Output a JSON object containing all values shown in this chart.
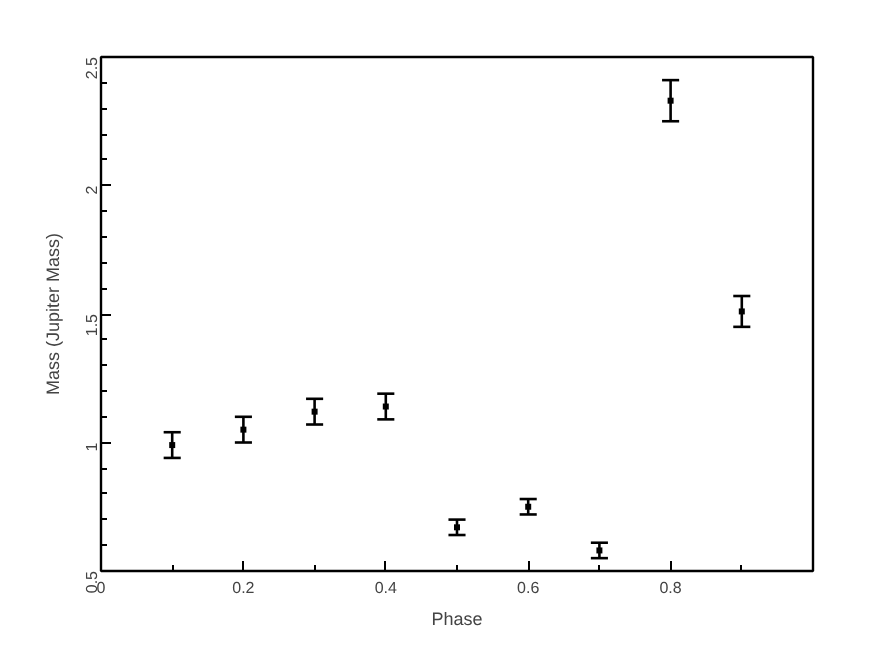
{
  "chart_data": {
    "type": "scatter",
    "xlabel": "Phase",
    "ylabel": "Mass (Jupiter Mass)",
    "series": [
      {
        "x": [
          0.1,
          0.2,
          0.3,
          0.4,
          0.5,
          0.6,
          0.7,
          0.8,
          0.9
        ],
        "color": "#000000",
        "values": [
          0.99,
          1.05,
          1.12,
          1.14,
          0.67,
          0.75,
          0.58,
          2.33,
          1.51
        ],
        "errors": [
          0.05,
          0.05,
          0.05,
          0.05,
          0.03,
          0.03,
          0.03,
          0.08,
          0.06
        ]
      }
    ],
    "xlim": [
      0,
      1
    ],
    "ylim": [
      0.5,
      2.5
    ],
    "xticks": [
      0,
      0.2,
      0.4,
      0.6,
      0.8
    ],
    "yticks": [
      0.5,
      1,
      1.5,
      2,
      2.5
    ],
    "grid": false
  }
}
